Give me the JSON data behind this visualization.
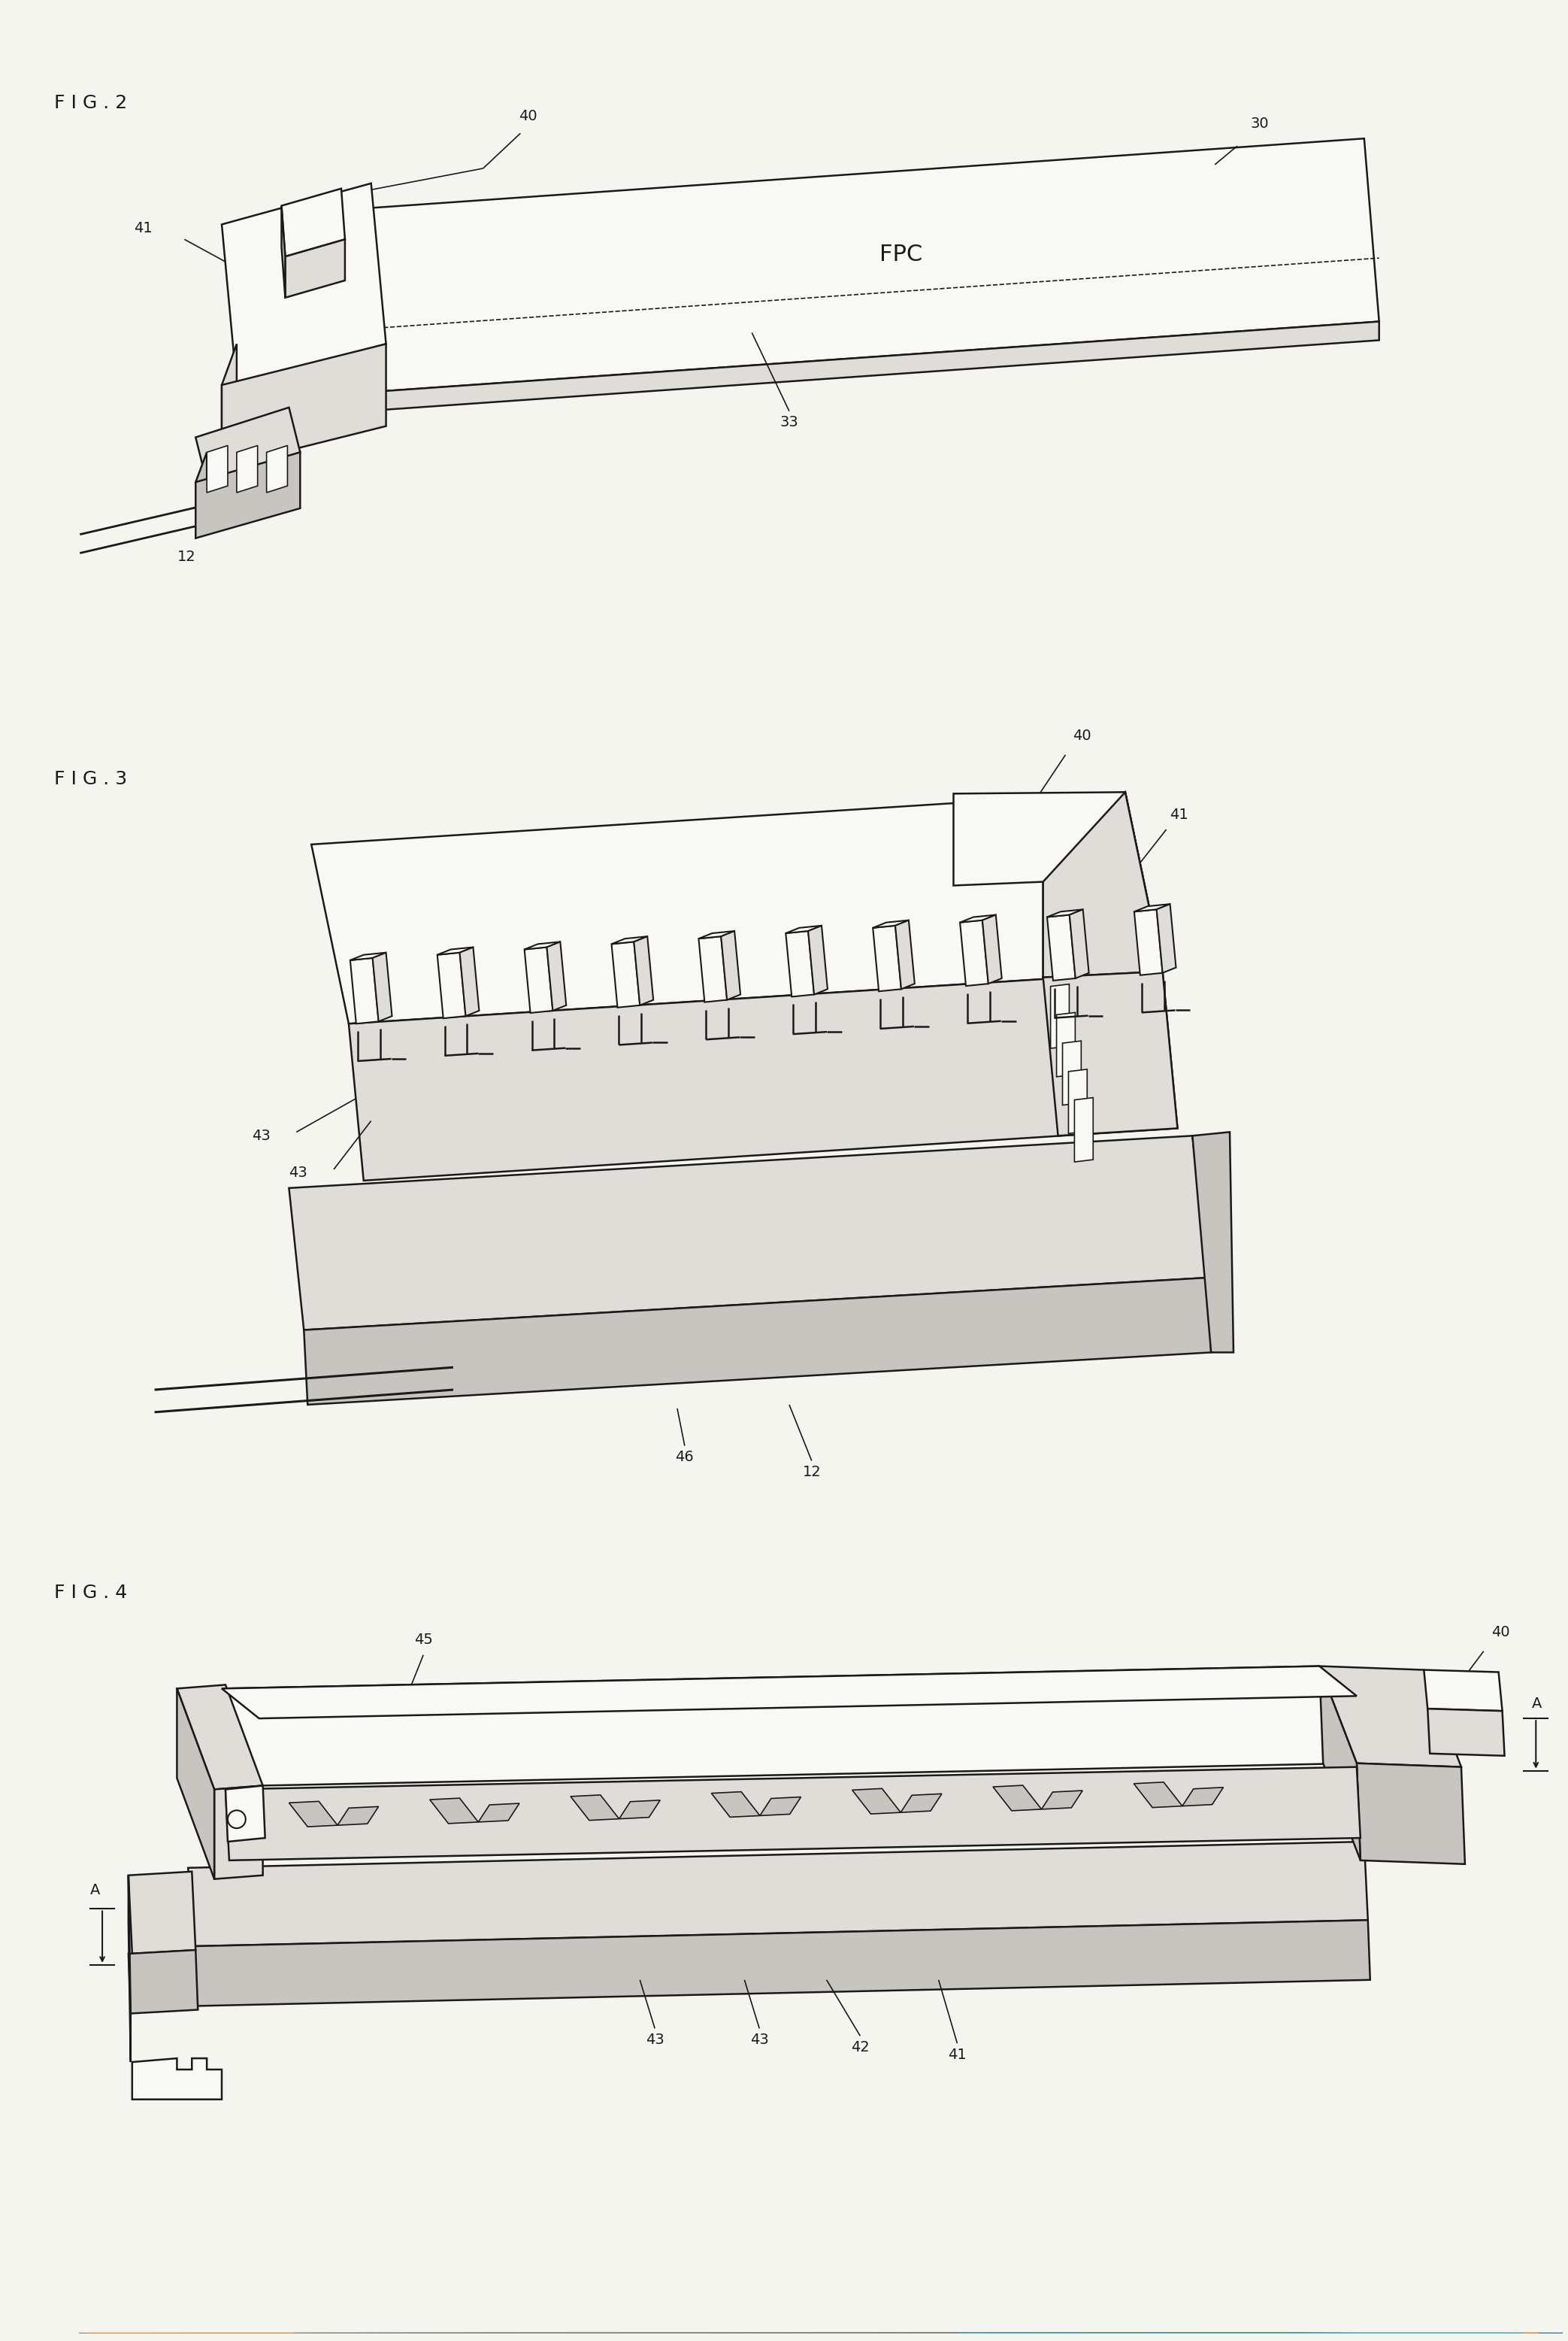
{
  "fig_width": 20.86,
  "fig_height": 31.13,
  "bg_color": "#f5f5f0",
  "line_color": "#1a1a1a",
  "fill_white": "#f8f8f5",
  "fill_light": "#e0ddd8",
  "fill_mid": "#c8c5c0",
  "fill_dark": "#b0ada8",
  "fig2_title": "F I G . 2",
  "fig3_title": "F I G . 3",
  "fig4_title": "F I G . 4",
  "label_fs": 14,
  "title_fs": 18
}
